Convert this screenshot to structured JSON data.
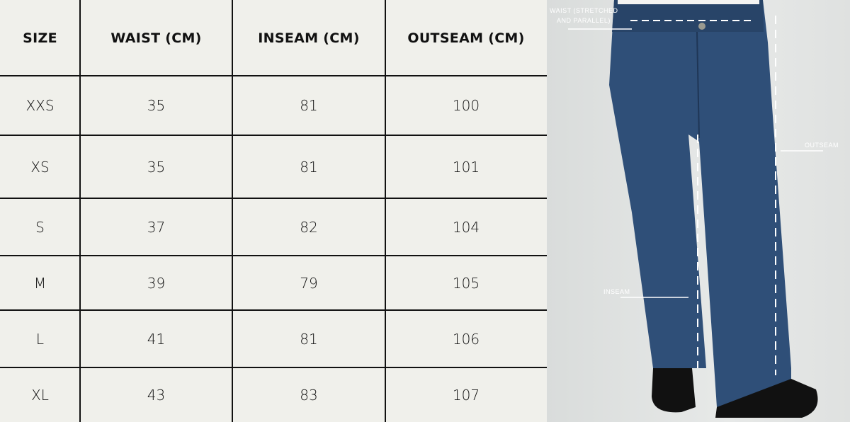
{
  "table": {
    "headers": [
      "SIZE",
      "WAIST (CM)",
      "INSEAM (CM)",
      "OUTSEAM (CM)"
    ],
    "rows": [
      [
        "XXS",
        "35",
        "81",
        "100"
      ],
      [
        "XS",
        "35",
        "81",
        "101"
      ],
      [
        "S",
        "37",
        "82",
        "104"
      ],
      [
        "M",
        "39",
        "79",
        "105"
      ],
      [
        "L",
        "41",
        "81",
        "106"
      ],
      [
        "XL",
        "43",
        "83",
        "107"
      ]
    ]
  },
  "photo": {
    "labels": {
      "waist_line1": "WAIST (STRETCHED",
      "waist_line2": "AND PARALLEL)",
      "outseam": "OUTSEAM",
      "inseam": "INSEAM"
    }
  },
  "colors": {
    "background": "#f0f0eb",
    "grid": "#111111",
    "denim": "#2f4f78"
  }
}
